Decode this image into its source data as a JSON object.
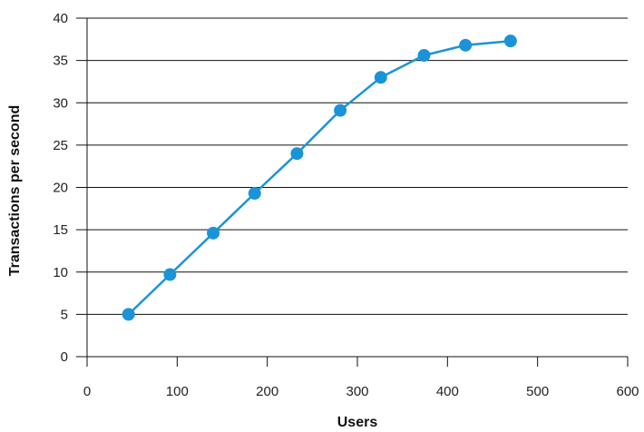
{
  "chart_data": {
    "type": "line",
    "title": "",
    "xlabel": "Users",
    "ylabel": "Transactions per second",
    "xlim": [
      0,
      600
    ],
    "ylim": [
      0,
      40
    ],
    "x_ticks": [
      0,
      100,
      200,
      300,
      400,
      500,
      600
    ],
    "y_ticks": [
      0,
      5,
      10,
      15,
      20,
      25,
      30,
      35,
      40
    ],
    "grid": "horizontal",
    "legend": "none",
    "series": [
      {
        "color": "#1a94d6",
        "x": [
          46,
          92,
          140,
          186,
          233,
          281,
          326,
          374,
          420,
          470
        ],
        "y": [
          5.0,
          9.7,
          14.6,
          19.3,
          24.0,
          29.1,
          33.0,
          35.6,
          36.8,
          37.3
        ]
      }
    ]
  }
}
